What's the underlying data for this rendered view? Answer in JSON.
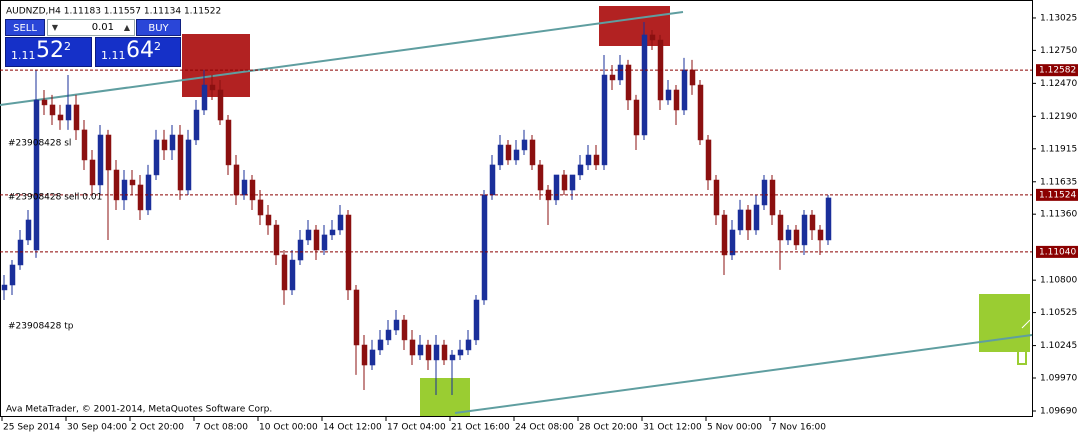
{
  "chart_data": {
    "type": "candlestick",
    "title": "AUDNZD,H4  1.11183 1.11557 1.11134 1.11522",
    "footer": "Ava MetaTrader, © 2001-2014, MetaQuotes Software Corp.",
    "up_color": "#1a2f9a",
    "down_color": "#8b1010",
    "line_color": "#000",
    "categories": [
      "25 Sep 2014",
      null,
      null,
      null,
      null,
      null,
      null,
      null,
      "30 Sep 04:00",
      null,
      null,
      null,
      null,
      null,
      null,
      null,
      "2 Oct 20:00",
      null,
      null,
      null,
      null,
      null,
      null,
      null,
      "7 Oct 08:00",
      null,
      null,
      null,
      null,
      null,
      null,
      null,
      "10 Oct 00:00",
      null,
      null,
      null,
      null,
      null,
      null,
      null,
      "14 Oct 12:00",
      null,
      null,
      null,
      null,
      null,
      null,
      null,
      "17 Oct 04:00",
      null,
      null,
      null,
      null,
      null,
      null,
      null,
      "21 Oct 16:00",
      null,
      null,
      null,
      null,
      null,
      null,
      null,
      "24 Oct 08:00",
      null,
      null,
      null,
      null,
      null,
      null,
      null,
      "28 Oct 20:00",
      null,
      null,
      null,
      null,
      null,
      null,
      null,
      "31 Oct 12:00",
      null,
      null,
      null,
      null,
      null,
      null,
      null,
      "5 Nov 00:00",
      null,
      null,
      null,
      null,
      null,
      null,
      null,
      "7 Nov 16:00",
      null,
      null,
      null,
      null,
      null,
      null,
      null
    ],
    "open": [
      1.10717,
      1.10759,
      1.10929,
      1.11141,
      1.11056,
      1.12329,
      1.12287,
      1.12202,
      1.12159,
      1.12287,
      1.12075,
      1.1182,
      1.11608,
      1.12032,
      1.11735,
      1.11481,
      1.1165,
      1.11608,
      1.11396,
      1.11693,
      1.1199,
      1.11905,
      1.12032,
      1.11565,
      1.1199,
      1.12244,
      1.12456,
      1.12414,
      1.12159,
      1.11778,
      1.11523,
      1.1165,
      1.11481,
      1.11353,
      1.11268,
      1.11014,
      1.10717,
      1.10971,
      1.11141,
      1.11226,
      1.11056,
      1.11184,
      1.11226,
      1.11353,
      1.10717,
      1.1025,
      1.1008,
      1.10208,
      1.10293,
      1.10377,
      1.10462,
      1.10293,
      1.10165,
      1.1025,
      1.10123,
      1.1025,
      1.10123,
      1.10165,
      1.10208,
      1.10293,
      1.10632,
      1.11523,
      1.11778,
      1.11947,
      1.1182,
      1.11905,
      1.1199,
      1.11778,
      1.11565,
      1.11481,
      1.11693,
      1.11565,
      1.11693,
      1.11778,
      1.11862,
      1.11778,
      1.12541,
      1.12499,
      1.12626,
      1.12329,
      1.12032,
      1.12881,
      1.12838,
      1.12329,
      1.12414,
      1.12244,
      1.12584,
      1.12456,
      1.1199,
      1.1165,
      1.11353,
      1.11014,
      1.11226,
      1.11396,
      1.11226,
      1.11438,
      1.1165,
      1.11353,
      1.11141,
      1.11226,
      1.11099,
      1.11353,
      1.11226,
      1.11141
    ],
    "high": [
      1.10844,
      1.10971,
      1.11226,
      1.11396,
      1.12584,
      1.12414,
      1.12372,
      1.12287,
      1.12541,
      1.12372,
      1.12159,
      1.11905,
      1.12117,
      1.12075,
      1.1182,
      1.11735,
      1.11735,
      1.11693,
      1.11778,
      1.12075,
      1.12075,
      1.12117,
      1.12117,
      1.12075,
      1.12329,
      1.12584,
      1.12541,
      1.12499,
      1.12202,
      1.11862,
      1.11735,
      1.11693,
      1.11565,
      1.11438,
      1.11311,
      1.11056,
      1.11056,
      1.11226,
      1.11311,
      1.11268,
      1.11268,
      1.11311,
      1.11438,
      1.11396,
      1.10759,
      1.10335,
      1.10293,
      1.10377,
      1.10462,
      1.10547,
      1.10505,
      1.10377,
      1.10335,
      1.10293,
      1.10335,
      1.10293,
      1.10208,
      1.10293,
      1.10377,
      1.10674,
      1.11565,
      1.11862,
      1.12032,
      1.1199,
      1.1199,
      1.12075,
      1.12032,
      1.1182,
      1.11608,
      1.11693,
      1.11735,
      1.11693,
      1.11862,
      1.11947,
      1.11947,
      1.12711,
      1.12626,
      1.12711,
      1.12669,
      1.12372,
      1.12991,
      1.12923,
      1.12881,
      1.12499,
      1.12456,
      1.12686,
      1.12669,
      1.12499,
      1.12032,
      1.11693,
      1.11396,
      1.11311,
      1.11481,
      1.11438,
      1.11523,
      1.11693,
      1.11693,
      1.11396,
      1.11268,
      1.11268,
      1.11396,
      1.11396,
      1.11268,
      1.11523
    ],
    "low": [
      1.10632,
      1.10674,
      1.10887,
      1.11099,
      1.10989,
      1.12202,
      1.12117,
      1.12075,
      1.12075,
      1.1199,
      1.11735,
      1.11523,
      1.11523,
      1.11141,
      1.11396,
      1.11396,
      1.11523,
      1.11311,
      1.11353,
      1.1165,
      1.1182,
      1.1182,
      1.11481,
      1.11523,
      1.11947,
      1.12202,
      1.12329,
      1.12117,
      1.11693,
      1.11438,
      1.11481,
      1.11396,
      1.11268,
      1.11184,
      1.10929,
      1.1059,
      1.10674,
      1.10929,
      1.11099,
      1.10971,
      1.11014,
      1.11141,
      1.11184,
      1.10632,
      1.09996,
      1.09868,
      1.10038,
      1.10165,
      1.1025,
      1.10335,
      1.10208,
      1.1008,
      1.10123,
      1.10038,
      1.09826,
      1.1008,
      1.09826,
      1.10123,
      1.10165,
      1.1025,
      1.1059,
      1.11481,
      1.11735,
      1.11778,
      1.11778,
      1.11862,
      1.11735,
      1.11481,
      1.11268,
      1.11438,
      1.11523,
      1.11481,
      1.1165,
      1.11735,
      1.11735,
      1.11735,
      1.12414,
      1.12456,
      1.12244,
      1.11905,
      1.1199,
      1.12753,
      1.12244,
      1.12287,
      1.12117,
      1.12202,
      1.12372,
      1.11947,
      1.11565,
      1.11268,
      1.10844,
      1.10971,
      1.11184,
      1.11141,
      1.11184,
      1.11396,
      1.11268,
      1.10887,
      1.11099,
      1.11056,
      1.11014,
      1.11141,
      1.11014,
      1.11099
    ],
    "close": [
      1.10759,
      1.10929,
      1.11141,
      1.11311,
      1.12329,
      1.12287,
      1.12202,
      1.12159,
      1.12287,
      1.12075,
      1.1182,
      1.11608,
      1.12032,
      1.11735,
      1.11481,
      1.1165,
      1.11608,
      1.11396,
      1.11693,
      1.1199,
      1.11905,
      1.12032,
      1.11565,
      1.1199,
      1.12244,
      1.12456,
      1.12414,
      1.12159,
      1.11778,
      1.11523,
      1.1165,
      1.11481,
      1.11353,
      1.11268,
      1.11014,
      1.10717,
      1.10971,
      1.11141,
      1.11226,
      1.11056,
      1.11184,
      1.11226,
      1.11353,
      1.10717,
      1.1025,
      1.1008,
      1.10208,
      1.10293,
      1.10377,
      1.10462,
      1.10293,
      1.10165,
      1.1025,
      1.10123,
      1.1025,
      1.10123,
      1.10165,
      1.10208,
      1.10293,
      1.10632,
      1.11523,
      1.11778,
      1.11947,
      1.1182,
      1.11905,
      1.1199,
      1.11778,
      1.11565,
      1.11481,
      1.11693,
      1.11565,
      1.11693,
      1.11778,
      1.11862,
      1.11778,
      1.12541,
      1.12499,
      1.12626,
      1.12329,
      1.12032,
      1.12881,
      1.12838,
      1.12329,
      1.12414,
      1.12244,
      1.12584,
      1.12456,
      1.1199,
      1.1165,
      1.11353,
      1.11014,
      1.11226,
      1.11396,
      1.11226,
      1.11438,
      1.1165,
      1.11353,
      1.11141,
      1.11226,
      1.11099,
      1.11353,
      1.11226,
      1.11141,
      1.11498
    ],
    "ylim": [
      1.09656,
      1.13135
    ],
    "yticks": [
      1.13025,
      {
        "value": 1.1275,
        "label": "1.12750"
      },
      {
        "value": 1.1247,
        "label": "1.12470"
      },
      {
        "value": 1.1219,
        "label": "1.12190"
      },
      1.11915,
      1.11635,
      {
        "value": 1.1136,
        "label": "1.11360"
      },
      {
        "value": 1.108,
        "label": "1.10800"
      },
      1.10525,
      1.10245,
      {
        "value": 1.0997,
        "label": "1.09970"
      },
      {
        "value": 1.0969,
        "label": "1.09690"
      }
    ],
    "order_lines": [
      1.12582,
      1.11524,
      {
        "value": 1.1104,
        "label": "1.11040"
      }
    ],
    "order_tags": [
      "#23908428 sl",
      "#23908428 sell 0.01",
      "#23908428 tp"
    ]
  },
  "trade_panel": {
    "sell": "SELL",
    "buy": "BUY",
    "lot": "0.01",
    "bid": {
      "small": "1.11",
      "big": "52",
      "sup": "2"
    },
    "ask": {
      "small": "1.11",
      "big": "64",
      "sup": "2"
    }
  }
}
